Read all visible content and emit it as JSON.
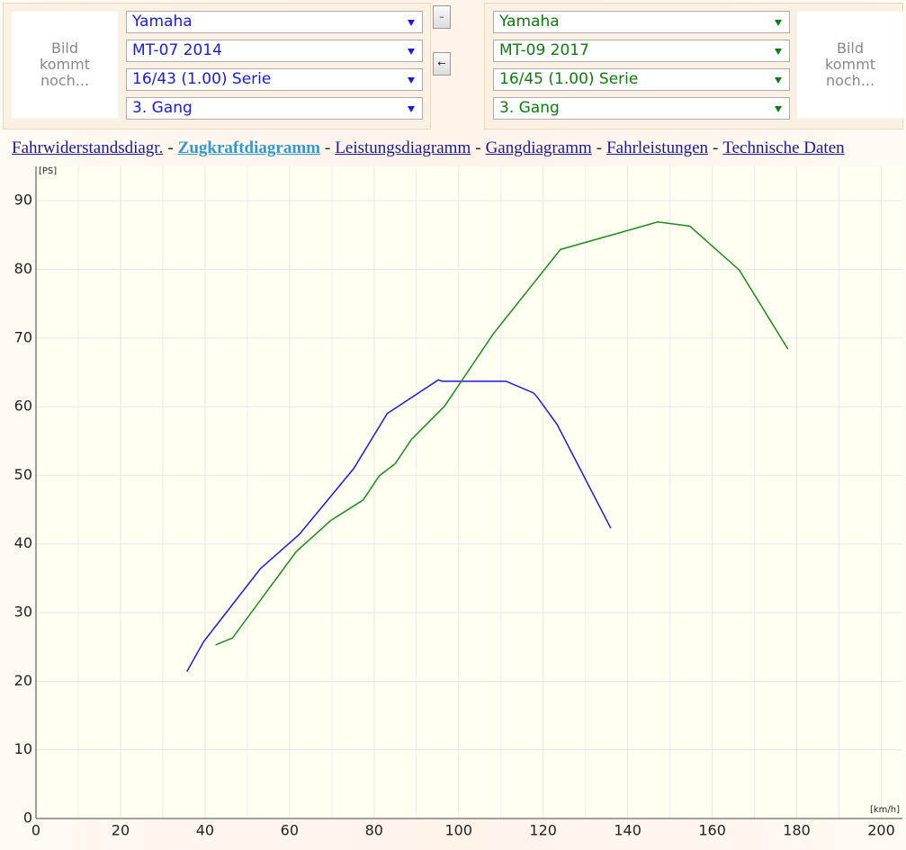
{
  "panels": [
    {
      "image_text": "Bild kommt noch...",
      "selects": [
        "Yamaha",
        "MT-07 2014",
        "16/43 (1.00) Serie",
        "3. Gang"
      ],
      "color": "#1a1ae6"
    },
    {
      "image_text": "Bild kommt noch...",
      "selects": [
        "Yamaha",
        "MT-09 2017",
        "16/45 (1.00) Serie",
        "3. Gang"
      ],
      "color": "#0b7d0b"
    }
  ],
  "buttons": [
    "–",
    "←"
  ],
  "nav": {
    "links": [
      "Fahrwiderstandsdiagr.",
      "Zugkraftdiagramm",
      "Leistungsdiagramm",
      "Gangdiagramm",
      "Fahrleistungen",
      "Technische Daten"
    ],
    "separator": "-",
    "active": 1
  },
  "chart_data": {
    "type": "line",
    "ylabel": "[PS]",
    "xlabel": "[km/h]",
    "xlim": [
      0,
      205
    ],
    "ylim": [
      0,
      95
    ],
    "xticks": [
      0,
      20,
      40,
      60,
      80,
      100,
      120,
      140,
      160,
      180,
      200
    ],
    "x_minor_ticks": [
      10,
      30,
      50,
      70,
      90,
      110,
      130,
      150,
      170,
      190
    ],
    "yticks": [
      0,
      10,
      20,
      30,
      40,
      50,
      60,
      70,
      80,
      90
    ],
    "grid": true,
    "series": [
      {
        "color": "#1a1ae6",
        "x": [
          35.7,
          39.7,
          53.1,
          62.3,
          75.2,
          83.1,
          95.2,
          96.1,
          111.2,
          117.7,
          118.6,
          123.3,
          136.0
        ],
        "values": [
          21.4,
          25.8,
          36.4,
          41.4,
          51.0,
          59.0,
          63.9,
          63.7,
          63.7,
          62.0,
          61.4,
          57.4,
          42.3
        ]
      },
      {
        "color": "#1a8c1a",
        "x": [
          42.5,
          46.5,
          61.6,
          69.7,
          77.4,
          81.2,
          85.0,
          88.8,
          96.7,
          108.2,
          124.1,
          147.1,
          154.7,
          166.4,
          177.9
        ],
        "values": [
          25.3,
          26.3,
          38.9,
          43.4,
          46.4,
          49.9,
          51.7,
          55.2,
          60.1,
          70.6,
          82.9,
          86.9,
          86.3,
          79.9,
          68.4
        ]
      }
    ]
  }
}
